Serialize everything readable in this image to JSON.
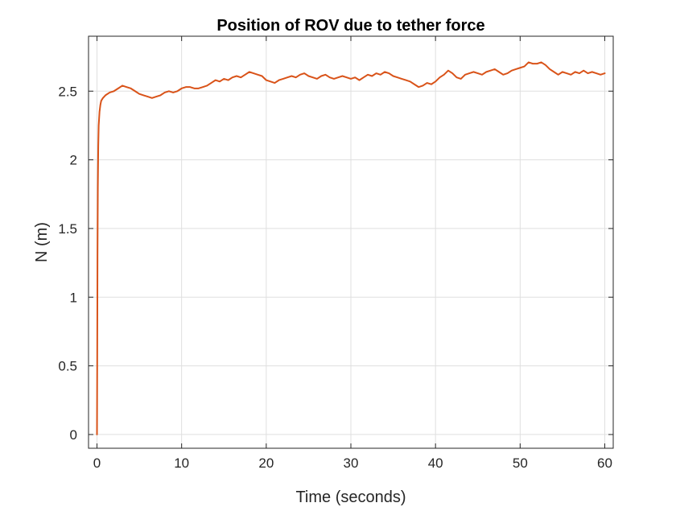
{
  "chart_data": {
    "type": "line",
    "title": "Position of ROV due to tether force",
    "xlabel": "Time (seconds)",
    "ylabel": "N (m)",
    "xlim": [
      -1,
      61
    ],
    "ylim": [
      -0.1,
      2.9
    ],
    "xticks": [
      0,
      10,
      20,
      30,
      40,
      50,
      60
    ],
    "yticks": [
      0,
      0.5,
      1,
      1.5,
      2,
      2.5
    ],
    "xtick_labels": [
      "0",
      "10",
      "20",
      "30",
      "40",
      "50",
      "60"
    ],
    "ytick_labels": [
      "0",
      "0.5",
      "1",
      "1.5",
      "2",
      "2.5"
    ],
    "grid": true,
    "series": [
      {
        "color": "#D95319",
        "x": [
          0,
          0.03,
          0.06,
          0.1,
          0.15,
          0.2,
          0.3,
          0.4,
          0.5,
          0.7,
          1.0,
          1.5,
          2.0,
          2.5,
          3.0,
          3.5,
          4.0,
          4.5,
          5.0,
          5.5,
          6.0,
          6.5,
          7.0,
          7.5,
          8.0,
          8.5,
          9.0,
          9.5,
          10.0,
          10.5,
          11.0,
          11.5,
          12.0,
          12.5,
          13.0,
          13.5,
          14.0,
          14.5,
          15.0,
          15.5,
          16.0,
          16.5,
          17.0,
          17.5,
          18.0,
          18.5,
          19.0,
          19.5,
          20.0,
          20.5,
          21.0,
          21.5,
          22.0,
          22.5,
          23.0,
          23.5,
          24.0,
          24.5,
          25.0,
          25.5,
          26.0,
          26.5,
          27.0,
          27.5,
          28.0,
          28.5,
          29.0,
          29.5,
          30.0,
          30.5,
          31.0,
          31.5,
          32.0,
          32.5,
          33.0,
          33.5,
          34.0,
          34.5,
          35.0,
          35.5,
          36.0,
          36.5,
          37.0,
          37.5,
          38.0,
          38.5,
          39.0,
          39.5,
          40.0,
          40.5,
          41.0,
          41.5,
          42.0,
          42.5,
          43.0,
          43.5,
          44.0,
          44.5,
          45.0,
          45.5,
          46.0,
          46.5,
          47.0,
          47.5,
          48.0,
          48.5,
          49.0,
          49.5,
          50.0,
          50.5,
          51.0,
          51.5,
          52.0,
          52.5,
          53.0,
          53.5,
          54.0,
          54.5,
          55.0,
          55.5,
          56.0,
          56.5,
          57.0,
          57.5,
          58.0,
          58.5,
          59.0,
          59.5,
          60.0
        ],
        "y": [
          0,
          0.6,
          1.3,
          1.8,
          2.1,
          2.25,
          2.35,
          2.4,
          2.43,
          2.45,
          2.47,
          2.49,
          2.5,
          2.52,
          2.54,
          2.53,
          2.52,
          2.5,
          2.48,
          2.47,
          2.46,
          2.45,
          2.46,
          2.47,
          2.49,
          2.5,
          2.49,
          2.5,
          2.52,
          2.53,
          2.53,
          2.52,
          2.52,
          2.53,
          2.54,
          2.56,
          2.58,
          2.57,
          2.59,
          2.58,
          2.6,
          2.61,
          2.6,
          2.62,
          2.64,
          2.63,
          2.62,
          2.61,
          2.58,
          2.57,
          2.56,
          2.58,
          2.59,
          2.6,
          2.61,
          2.6,
          2.62,
          2.63,
          2.61,
          2.6,
          2.59,
          2.61,
          2.62,
          2.6,
          2.59,
          2.6,
          2.61,
          2.6,
          2.59,
          2.6,
          2.58,
          2.6,
          2.62,
          2.61,
          2.63,
          2.62,
          2.64,
          2.63,
          2.61,
          2.6,
          2.59,
          2.58,
          2.57,
          2.55,
          2.53,
          2.54,
          2.56,
          2.55,
          2.57,
          2.6,
          2.62,
          2.65,
          2.63,
          2.6,
          2.59,
          2.62,
          2.63,
          2.64,
          2.63,
          2.62,
          2.64,
          2.65,
          2.66,
          2.64,
          2.62,
          2.63,
          2.65,
          2.66,
          2.67,
          2.68,
          2.71,
          2.7,
          2.7,
          2.71,
          2.69,
          2.66,
          2.64,
          2.62,
          2.64,
          2.63,
          2.62,
          2.64,
          2.63,
          2.65,
          2.63,
          2.64,
          2.63,
          2.62,
          2.63
        ]
      }
    ]
  }
}
